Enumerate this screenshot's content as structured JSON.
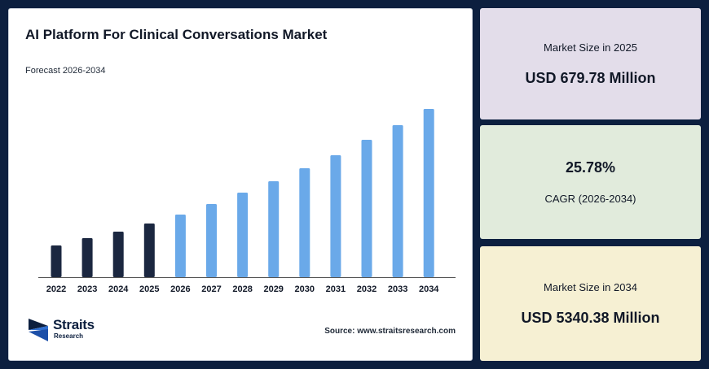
{
  "title": "AI Platform For Clinical Conversations Market",
  "subtitle": "Forecast 2026-2034",
  "source": "Source: www.straitsresearch.com",
  "brand": {
    "name": "Straits",
    "sub": "Research"
  },
  "colors": {
    "historical": "#1b2740",
    "forecast": "#6aa9e9",
    "background": "#0c1f3f"
  },
  "stats": {
    "size_2025": {
      "label": "Market Size in 2025",
      "value": "USD 679.78 Million"
    },
    "cagr": {
      "value": "25.78%",
      "label": "CAGR (2026-2034)"
    },
    "size_2034": {
      "label": "Market Size in 2034",
      "value": "USD 5340.38 Million"
    }
  },
  "chart_data": {
    "type": "bar",
    "categories": [
      "2022",
      "2023",
      "2024",
      "2025",
      "2026",
      "2027",
      "2028",
      "2029",
      "2030",
      "2031",
      "2032",
      "2033",
      "2034"
    ],
    "values": [
      39,
      48,
      56,
      66,
      77,
      90,
      104,
      118,
      134,
      150,
      169,
      187,
      207
    ],
    "historical_through": "2025",
    "title": "",
    "xlabel": "",
    "ylabel": "",
    "ylim": [
      0,
      207
    ],
    "grid": false
  }
}
